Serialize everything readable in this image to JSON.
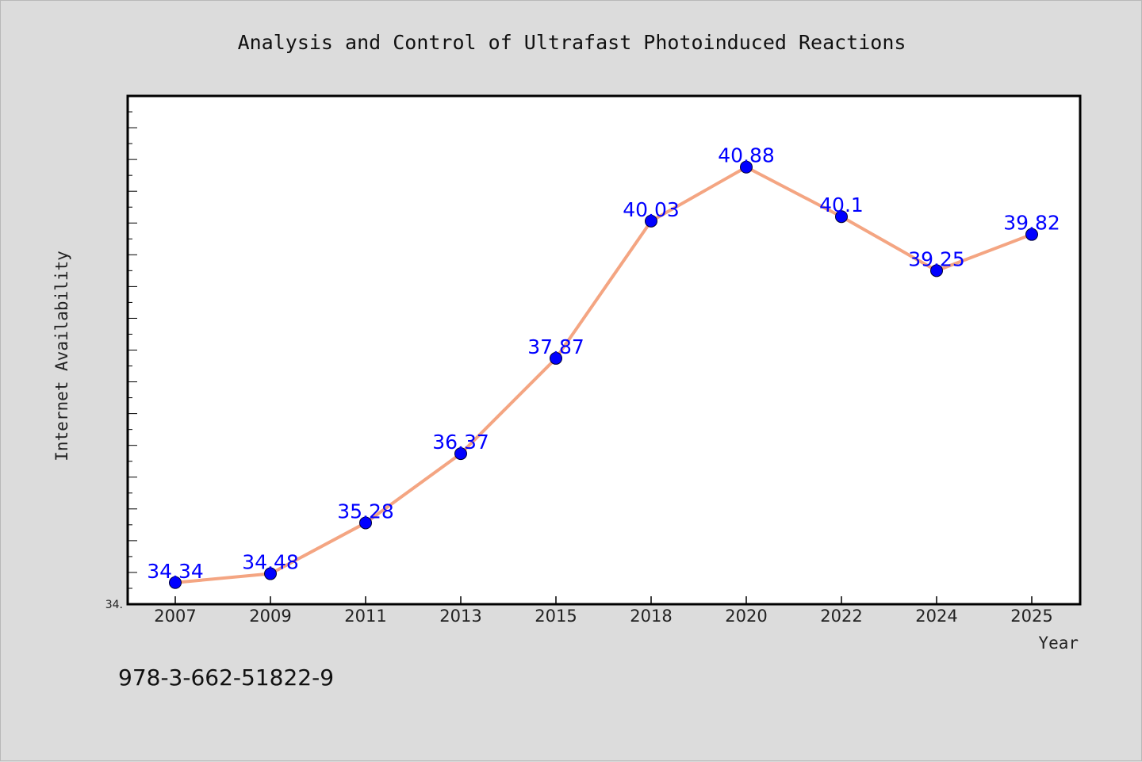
{
  "chart_data": {
    "type": "line",
    "title": "Analysis and Control of Ultrafast Photoinduced Reactions",
    "xlabel": "Year",
    "ylabel": "Internet Availability",
    "categories": [
      "2007",
      "2009",
      "2011",
      "2013",
      "2015",
      "2018",
      "2020",
      "2022",
      "2024",
      "2025"
    ],
    "series": [
      {
        "values": [
          34.34,
          34.48,
          35.28,
          36.37,
          37.87,
          40.03,
          40.88,
          40.1,
          39.25,
          39.82
        ],
        "labels": [
          "34.34",
          "34.48",
          "35.28",
          "36.37",
          "37.87",
          "40.03",
          "40.88",
          "40.1",
          "39.25",
          "39.82"
        ],
        "line_color": "#f4a582",
        "marker_color": "#0000ff",
        "label_color": "#0000ff"
      }
    ],
    "ylim": [
      34.0,
      42.0
    ],
    "y_min_label": "34.",
    "grid": false,
    "legend": "none"
  },
  "footer": {
    "isbn": "978-3-662-51822-9"
  },
  "colors": {
    "background": "#dcdcdc",
    "plot_background": "#ffffff",
    "axis": "#000000"
  }
}
